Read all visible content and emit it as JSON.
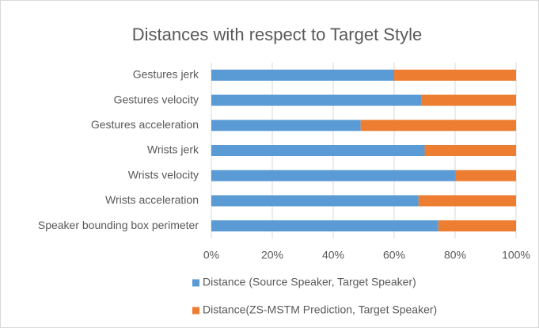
{
  "chart_data": {
    "type": "bar",
    "orientation": "horizontal",
    "stacked": true,
    "title": "Distances with respect to Target Style",
    "categories": [
      "Gestures jerk",
      "Gestures velocity",
      "Gestures acceleration",
      "Wrists jerk",
      "Wrists velocity",
      "Wrists acceleration",
      "Speaker bounding box perimeter"
    ],
    "series": [
      {
        "name": "Distance (Source Speaker, Target Speaker)",
        "color": "#5b9bd5",
        "values": [
          60,
          69,
          49,
          70,
          80,
          68,
          74.5
        ]
      },
      {
        "name": "Distance(ZS-MSTM Prediction, Target Speaker)",
        "color": "#ed7d31",
        "values": [
          40,
          31,
          51,
          30,
          20,
          32,
          25.5
        ]
      }
    ],
    "xlim": [
      0,
      100
    ],
    "xticks": [
      {
        "value": 0,
        "label": "0%"
      },
      {
        "value": 20,
        "label": "20%"
      },
      {
        "value": 40,
        "label": "40%"
      },
      {
        "value": 60,
        "label": "60%"
      },
      {
        "value": 80,
        "label": "80%"
      },
      {
        "value": 100,
        "label": "100%"
      }
    ],
    "grid": true,
    "legend": "bottom"
  }
}
